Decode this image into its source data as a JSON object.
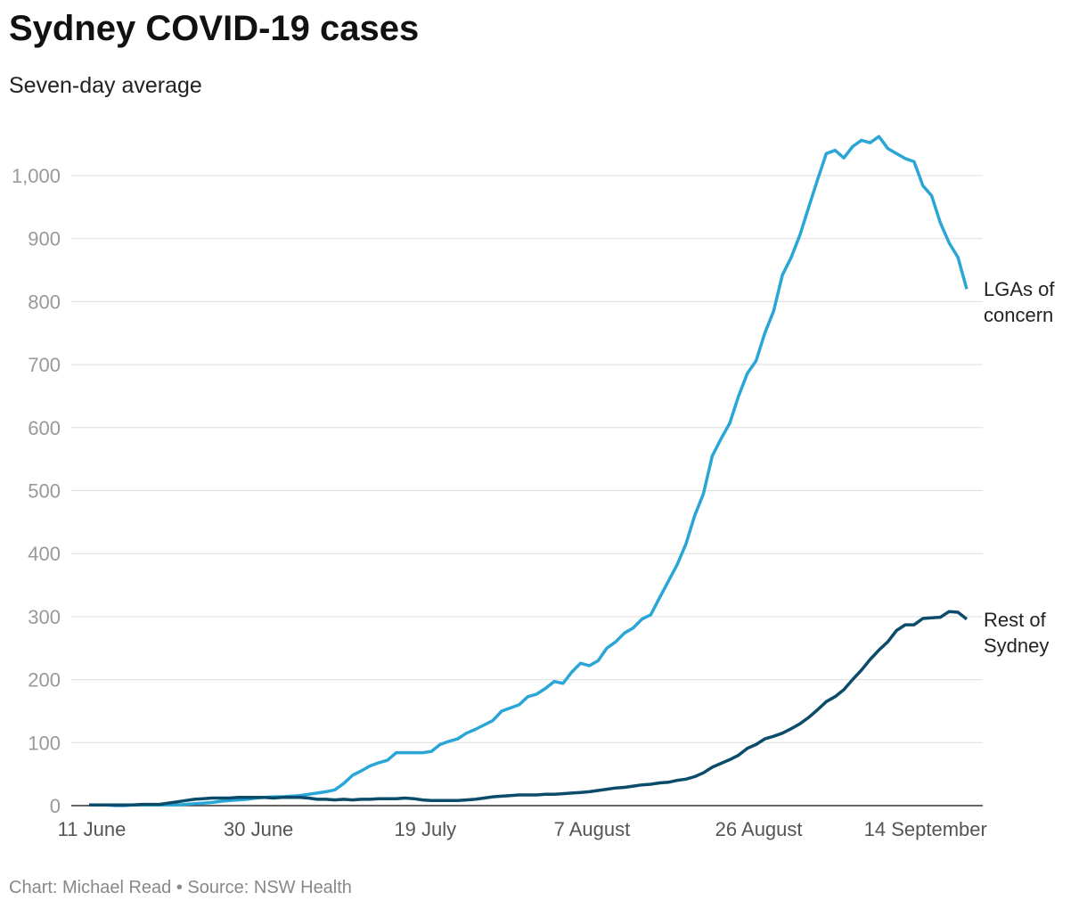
{
  "chart_data": {
    "type": "line",
    "title": "Sydney COVID-19 cases",
    "subtitle": "Seven-day average",
    "source": "Chart: Michael Read • Source: NSW Health",
    "categories": [
      "11 June",
      null,
      null,
      null,
      null,
      null,
      null,
      null,
      null,
      null,
      null,
      null,
      null,
      null,
      null,
      null,
      null,
      null,
      null,
      "30 June",
      null,
      null,
      null,
      null,
      null,
      null,
      null,
      null,
      null,
      null,
      null,
      null,
      null,
      null,
      null,
      null,
      null,
      null,
      "19 July",
      null,
      null,
      null,
      null,
      null,
      null,
      null,
      null,
      null,
      null,
      null,
      null,
      null,
      null,
      null,
      null,
      null,
      null,
      "7 August",
      null,
      null,
      null,
      null,
      null,
      null,
      null,
      null,
      null,
      null,
      null,
      null,
      null,
      null,
      null,
      null,
      null,
      null,
      "26 August",
      null,
      null,
      null,
      null,
      null,
      null,
      null,
      null,
      null,
      null,
      null,
      null,
      null,
      null,
      null,
      null,
      null,
      null,
      "14 September",
      null,
      null,
      null,
      null,
      null
    ],
    "series": [
      {
        "name": "LGAs of concern",
        "color": "#29a5d6",
        "values": [
          1,
          1,
          1,
          0,
          0,
          1,
          1,
          1,
          1,
          1,
          1,
          2,
          3,
          4,
          5,
          7,
          8,
          9,
          10,
          12,
          13,
          14,
          14,
          15,
          16,
          18,
          20,
          22,
          25,
          35,
          48,
          55,
          63,
          68,
          72,
          84,
          84,
          84,
          84,
          86,
          97,
          102,
          106,
          115,
          121,
          128,
          135,
          150,
          155,
          160,
          173,
          177,
          186,
          197,
          194,
          212,
          226,
          222,
          230,
          250,
          260,
          274,
          282,
          296,
          303,
          330,
          356,
          382,
          415,
          460,
          495,
          555,
          582,
          607,
          650,
          686,
          706,
          750,
          785,
          842,
          870,
          906,
          950,
          993,
          1035,
          1040,
          1028,
          1046,
          1056,
          1052,
          1062,
          1043,
          1035,
          1027,
          1022,
          984,
          968,
          925,
          893,
          870,
          820
        ]
      },
      {
        "name": "Rest of Sydney",
        "color": "#0a4c6a",
        "values": [
          1,
          1,
          1,
          1,
          1,
          1,
          2,
          2,
          2,
          4,
          6,
          8,
          10,
          11,
          12,
          12,
          12,
          13,
          13,
          13,
          13,
          12,
          13,
          13,
          13,
          12,
          10,
          10,
          9,
          10,
          9,
          10,
          10,
          11,
          11,
          11,
          12,
          11,
          9,
          8,
          8,
          8,
          8,
          9,
          10,
          12,
          14,
          15,
          16,
          17,
          17,
          17,
          18,
          18,
          19,
          20,
          21,
          22,
          24,
          26,
          28,
          29,
          31,
          33,
          34,
          36,
          37,
          40,
          42,
          46,
          52,
          61,
          67,
          73,
          80,
          91,
          97,
          106,
          110,
          115,
          122,
          130,
          140,
          152,
          165,
          173,
          184,
          200,
          215,
          232,
          247,
          260,
          278,
          287,
          287,
          297,
          298,
          299,
          308,
          307,
          296
        ]
      }
    ],
    "ylim": [
      0,
      1080
    ],
    "yticks": [
      0,
      100,
      200,
      300,
      400,
      500,
      600,
      700,
      800,
      900,
      {
        "value": 1000,
        "label": "1,000"
      }
    ],
    "grid": true
  }
}
